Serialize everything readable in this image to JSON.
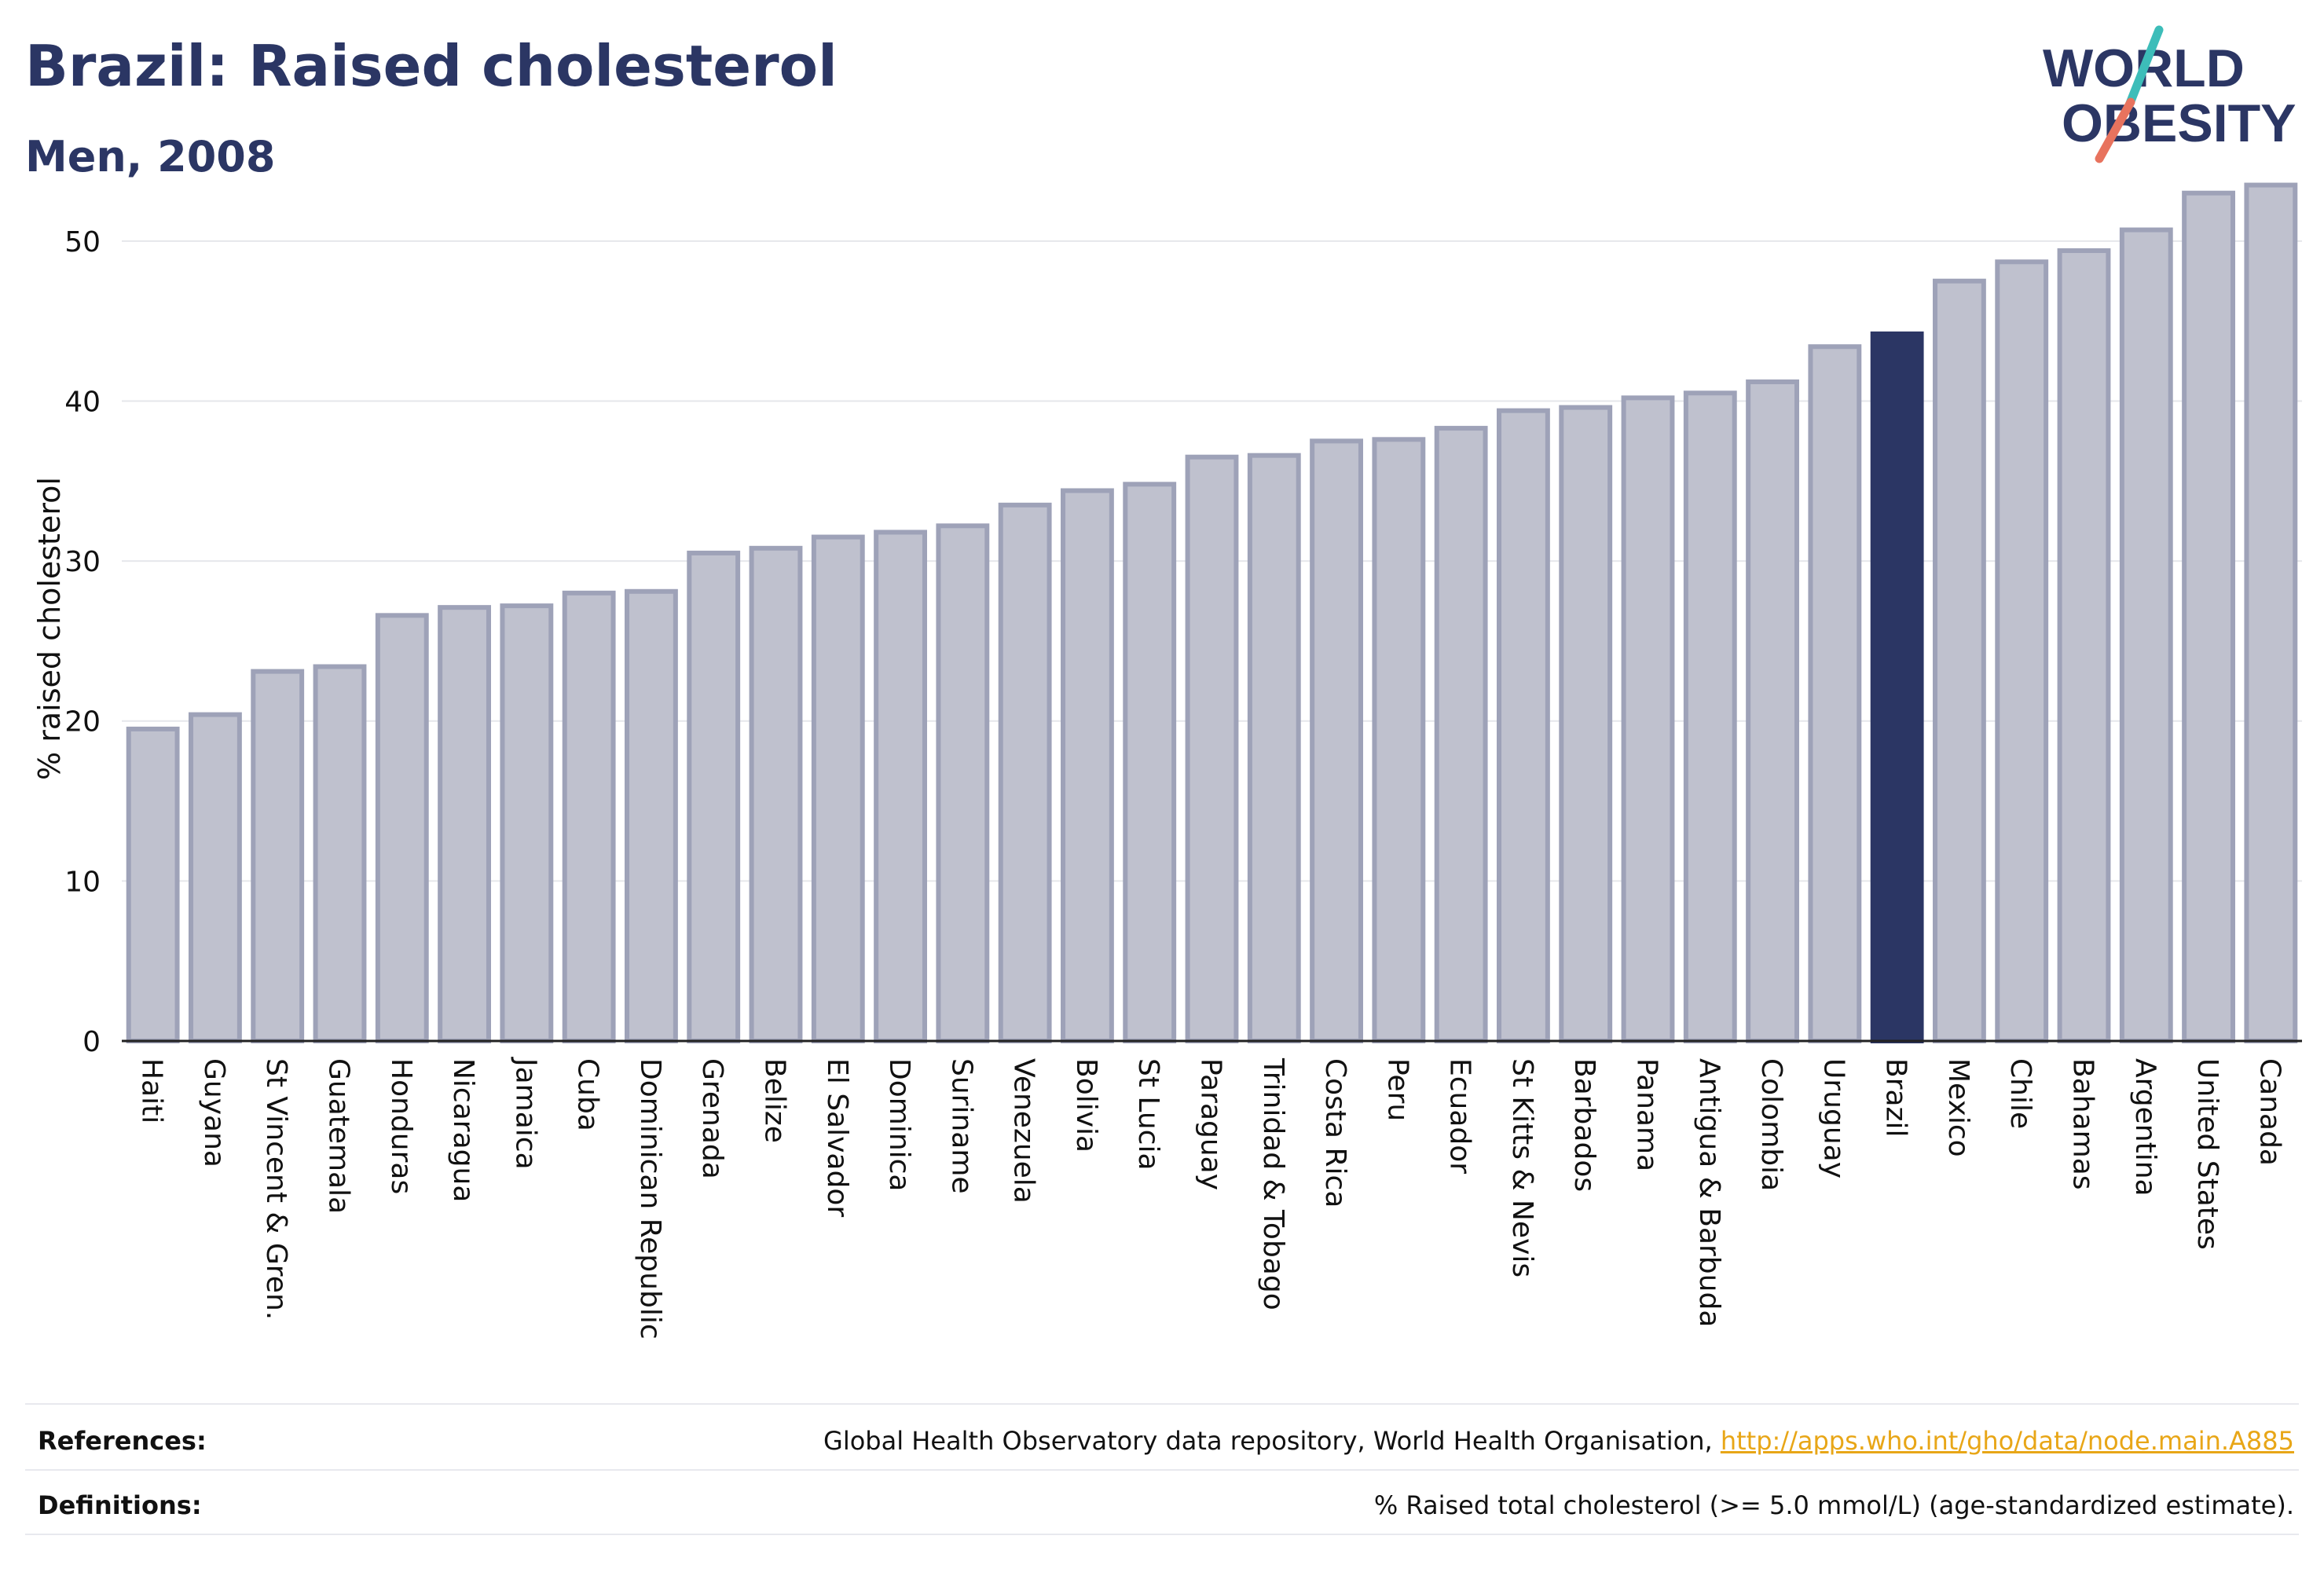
{
  "title": "Brazil: Raised cholesterol",
  "subtitle": "Men, 2008",
  "logo": {
    "line1": "WORLD",
    "line2": "OBESITY"
  },
  "colors": {
    "bar_fill": "#bfc1ce",
    "bar_stroke": "#9ea2b8",
    "highlight": "#2b3664",
    "title": "#2b3664",
    "grid": "#e6e7eb",
    "link": "#e8a617",
    "logo_teal": "#3dbdb9",
    "logo_coral": "#e8735e"
  },
  "chart_data": {
    "type": "bar",
    "ylabel": "% raised cholesterol",
    "ylim": [
      0,
      55
    ],
    "yticks": [
      0,
      10,
      20,
      30,
      40,
      50
    ],
    "grid": true,
    "highlight": "Brazil",
    "categories": [
      "Haiti",
      "Guyana",
      "St Vincent & Gren.",
      "Guatemala",
      "Honduras",
      "Nicaragua",
      "Jamaica",
      "Cuba",
      "Dominican Republic",
      "Grenada",
      "Belize",
      "El Salvador",
      "Dominica",
      "Suriname",
      "Venezuela",
      "Bolivia",
      "St Lucia",
      "Paraguay",
      "Trinidad & Tobago",
      "Costa Rica",
      "Peru",
      "Ecuador",
      "St Kitts & Nevis",
      "Barbados",
      "Panama",
      "Antigua & Barbuda",
      "Colombia",
      "Uruguay",
      "Brazil",
      "Mexico",
      "Chile",
      "Bahamas",
      "Argentina",
      "United States",
      "Canada"
    ],
    "values": [
      19.5,
      20.4,
      23.1,
      23.4,
      26.6,
      27.1,
      27.2,
      28.0,
      28.1,
      30.5,
      30.8,
      31.5,
      31.8,
      32.2,
      33.5,
      34.4,
      34.8,
      36.5,
      36.6,
      37.5,
      37.6,
      38.3,
      39.4,
      39.6,
      40.2,
      40.5,
      41.2,
      43.4,
      44.2,
      47.5,
      48.7,
      49.4,
      50.7,
      53.0,
      53.5
    ]
  },
  "footer": {
    "references_label": "References:",
    "references_text": "Global Health Observatory data repository, World Health Organisation,",
    "references_link": "http://apps.who.int/gho/data/node.main.A885",
    "definitions_label": "Definitions:",
    "definitions_text": "% Raised total cholesterol (>= 5.0 mmol/L) (age-standardized estimate)."
  }
}
